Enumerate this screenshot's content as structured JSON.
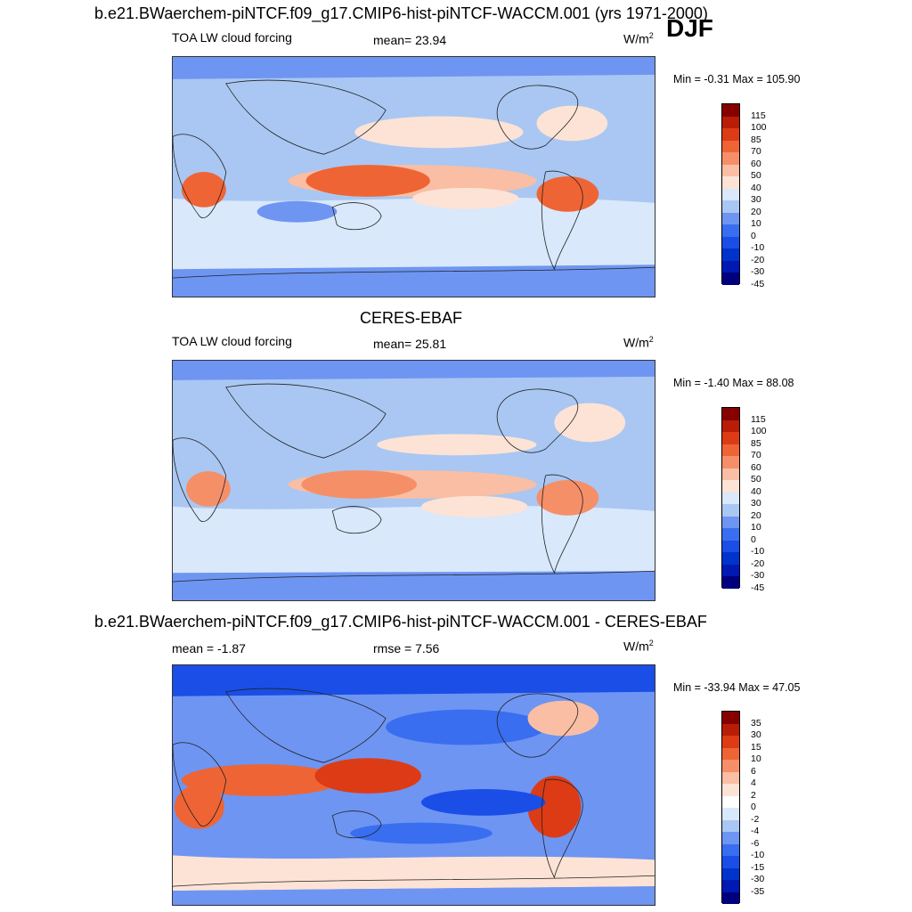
{
  "season": "DJF",
  "colors": {
    "ocean_base": "#a9c7f2",
    "land_line": "#222222",
    "scale_abs": [
      "#00007f",
      "#0019b3",
      "#0033cc",
      "#1a4ee6",
      "#3a6ef0",
      "#6e95f2",
      "#a9c7f2",
      "#d9e8fb",
      "#fde3d5",
      "#f9bea3",
      "#f58f68",
      "#ef6434",
      "#dd3b15",
      "#b81d07",
      "#870000"
    ],
    "scale_diff": [
      "#00007f",
      "#0019b3",
      "#0033cc",
      "#1a4ee6",
      "#3a6ef0",
      "#6e95f2",
      "#a9c7f2",
      "#d9e8fb",
      "#ffffff",
      "#fde3d5",
      "#f9bea3",
      "#f58f68",
      "#ef6434",
      "#dd3b15",
      "#b81d07",
      "#870000"
    ]
  },
  "panels": [
    {
      "title": "b.e21.BWaerchem-piNTCF.f09_g17.CMIP6-hist-piNTCF-WACCM.001 (yrs 1971-2000)",
      "left_label": "TOA LW cloud forcing",
      "center_label": "mean=  23.94",
      "units": "W/m",
      "units_exp": "2",
      "minmax": "Min =  -0.31 Max = 105.90",
      "levels": [
        "115",
        "100",
        "85",
        "70",
        "60",
        "50",
        "40",
        "30",
        "20",
        "10",
        "0",
        "-10",
        "-20",
        "-30",
        "-45"
      ]
    },
    {
      "title": "CERES-EBAF",
      "left_label": "TOA LW cloud forcing",
      "center_label": "mean=  25.81",
      "units": "W/m",
      "units_exp": "2",
      "minmax": "Min =  -1.40 Max =  88.08",
      "levels": [
        "115",
        "100",
        "85",
        "70",
        "60",
        "50",
        "40",
        "30",
        "20",
        "10",
        "0",
        "-10",
        "-20",
        "-30",
        "-45"
      ]
    },
    {
      "title": "b.e21.BWaerchem-piNTCF.f09_g17.CMIP6-hist-piNTCF-WACCM.001 - CERES-EBAF",
      "left_label": "mean =  -1.87",
      "center_label": "rmse =   7.56",
      "units": "W/m",
      "units_exp": "2",
      "minmax": "Min = -33.94 Max =  47.05",
      "levels": [
        "35",
        "30",
        "15",
        "10",
        "6",
        "4",
        "2",
        "0",
        "-2",
        "-4",
        "-6",
        "-10",
        "-15",
        "-30",
        "-35"
      ]
    }
  ]
}
